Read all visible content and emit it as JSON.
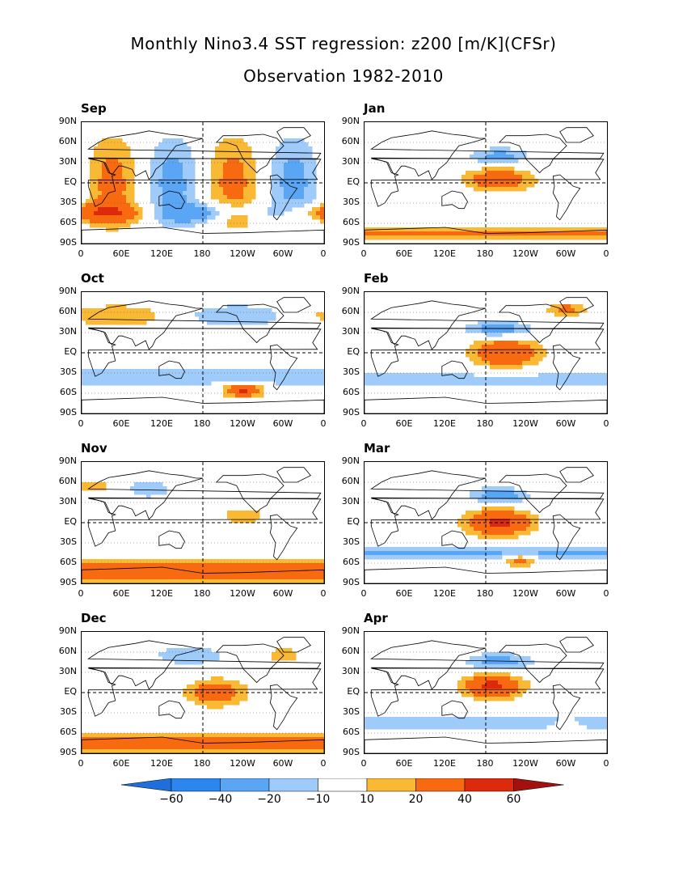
{
  "header": {
    "title": "Monthly Nino3.4 SST regression: z200 [m/K](CFSr)",
    "subtitle": "Observation 1982-2010"
  },
  "axes": {
    "lat_ticks": [
      "90N",
      "60N",
      "30N",
      "EQ",
      "30S",
      "60S",
      "90S"
    ],
    "lon_ticks": [
      "0",
      "60E",
      "120E",
      "180",
      "120W",
      "60W",
      "0"
    ]
  },
  "chart_data": {
    "type": "heatmap",
    "variable": "z200",
    "units": "m/K",
    "levels": [
      -60,
      -40,
      -20,
      -10,
      10,
      20,
      40,
      60
    ],
    "level_labels": [
      "-60",
      "-40",
      "-20",
      "-10",
      "10",
      "20",
      "40",
      "60"
    ],
    "colors": [
      "#1e6fd9",
      "#2b86ee",
      "#5aa6f5",
      "#9ecbfa",
      "#ffffff",
      "#f9b934",
      "#f76a10",
      "#dd2a0d",
      "#a3110f"
    ],
    "panels": [
      {
        "month": "Sep"
      },
      {
        "month": "Jan"
      },
      {
        "month": "Oct"
      },
      {
        "month": "Feb"
      },
      {
        "month": "Nov"
      },
      {
        "month": "Mar"
      },
      {
        "month": "Dec"
      },
      {
        "month": "Apr"
      }
    ]
  }
}
